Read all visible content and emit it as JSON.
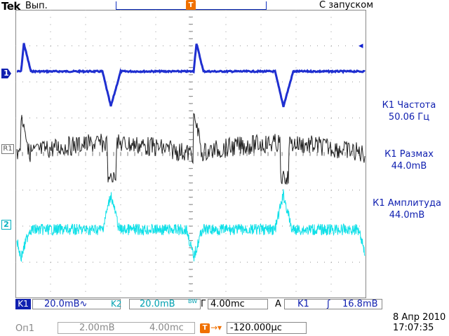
{
  "header": {
    "brand": "Tek",
    "run_state": "Вып.",
    "trigger_mode": "С запуском"
  },
  "markers": {
    "trigger_position": "T",
    "ch1": "1",
    "ref1": "R1",
    "ch2": "2",
    "trigger_level": "◂"
  },
  "measurements": [
    {
      "label": "К1 Частота",
      "value": "50.06 Гц"
    },
    {
      "label": "К1 Размах",
      "value": "44.0mB"
    },
    {
      "label": "К1 Амплитуда",
      "value": "44.0mB"
    }
  ],
  "status": {
    "ch1_tag": "K1",
    "ch1_scale": "20.0mB",
    "ch1_coupling": "∿",
    "ch2_tag": "K2",
    "ch2_scale": "20.0mB",
    "bw_limit": "BW",
    "timebase_label": "Г",
    "timebase_value": "4.00mc",
    "trigger_label": "A",
    "trigger_source": "K1",
    "trigger_slope": "ʃ",
    "trigger_value": "16.8mB"
  },
  "math": {
    "label": "Оп1",
    "scale": "2.00mB",
    "timebase": "4.00mc"
  },
  "horizontal_position": {
    "icon": "T",
    "arrow": "→▾",
    "value": "-120.000µc"
  },
  "datetime": {
    "date": "8 Апр 2010",
    "time": "17:07:35"
  },
  "colors": {
    "ch1": "#1f2fd0",
    "ref1": "#202020",
    "ch2": "#10e0e8",
    "trigger": "#f07000"
  }
}
